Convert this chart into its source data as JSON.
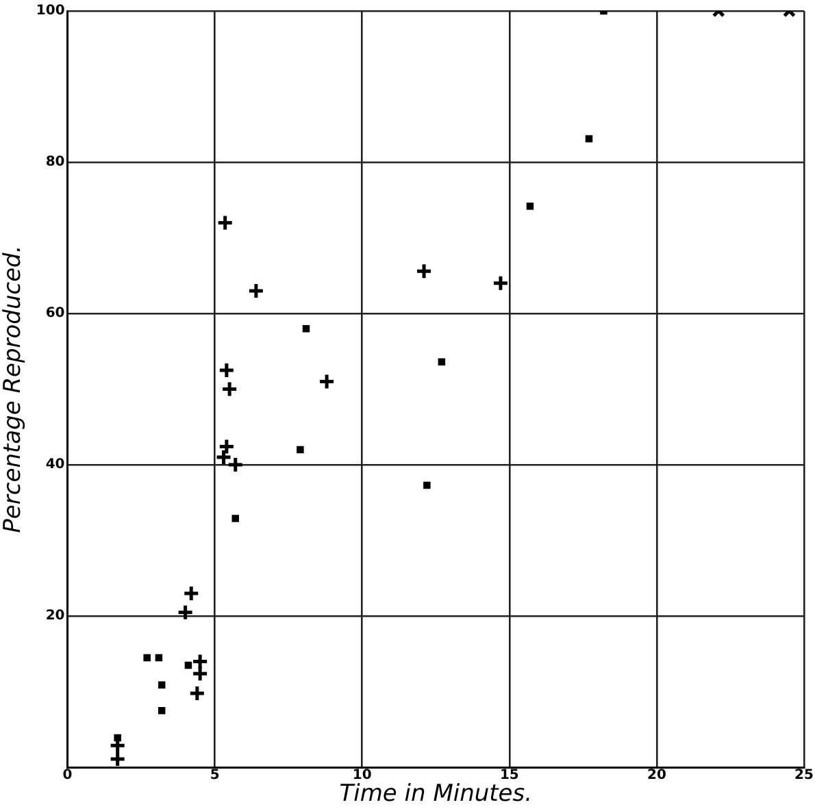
{
  "chart_data": {
    "type": "scatter",
    "xlabel": "Time in Minutes.",
    "ylabel": "Percentage Reproduced.",
    "xlim": [
      0,
      25
    ],
    "xticks": [
      0,
      5,
      10,
      15,
      20,
      25
    ],
    "ylim": [
      0,
      100
    ],
    "yticks": [
      {
        "value": 0,
        "label": null
      },
      20,
      40,
      60,
      80,
      100
    ],
    "grid": true,
    "legend": false,
    "series": [
      {
        "color": "#000000",
        "marker": "cross",
        "x": [
          4.2,
          4.0,
          4.5,
          4.5,
          4.4,
          1.7,
          1.7,
          5.35,
          6.4,
          5.4,
          5.5,
          8.8,
          5.4,
          5.3,
          5.7,
          12.1,
          14.7
        ],
        "values": [
          23,
          20.5,
          14,
          12.4,
          9.8,
          2.9,
          1.1,
          72,
          63,
          52.5,
          50,
          51,
          42.4,
          41,
          40,
          65.6,
          64
        ]
      },
      {
        "color": "#000000",
        "x": [
          1.7,
          2.7,
          3.1,
          3.2,
          3.2,
          4.1,
          8.1,
          7.9,
          12.7,
          5.7,
          12.2,
          17.7,
          15.7,
          18.2
        ],
        "values": [
          3.9,
          14.5,
          14.5,
          10.9,
          7.5,
          13.5,
          58,
          42,
          53.6,
          32.9,
          37.3,
          83.1,
          74.2,
          100
        ]
      },
      {
        "color": "#000000",
        "marker": "x",
        "x": [
          22.1,
          24.5
        ],
        "values": [
          100,
          100
        ]
      }
    ]
  }
}
